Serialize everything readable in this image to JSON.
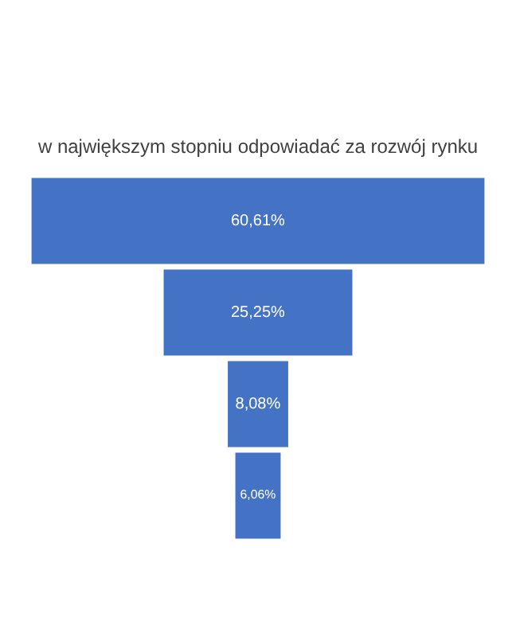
{
  "chart_data": {
    "type": "other",
    "title": "w największym stopniu odpowiadać za rozwój rynku",
    "categories": [
      null,
      null,
      null,
      null
    ],
    "values": [
      60.61,
      25.25,
      8.08,
      6.06
    ],
    "value_labels": [
      "60,61%",
      "25,25%",
      "8,08%",
      "6,06%"
    ],
    "color": "#4472c4"
  }
}
